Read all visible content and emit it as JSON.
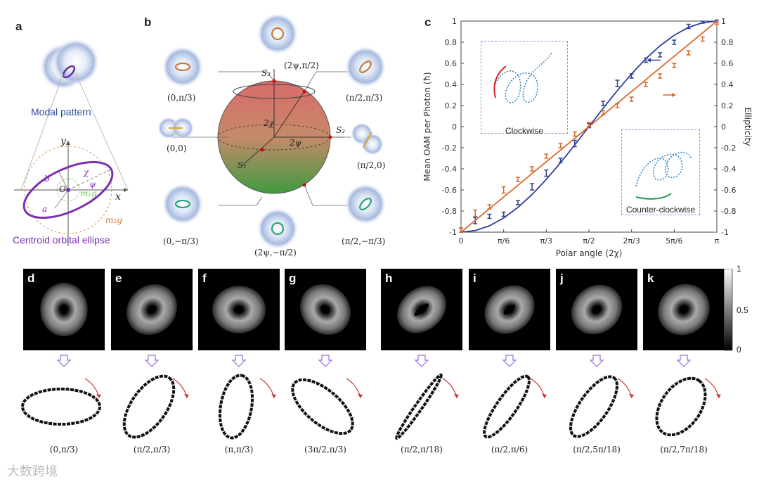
{
  "panels": {
    "a": {
      "label": "a",
      "modal_caption": "Modal pattern",
      "ellipse_caption": "Centroid orbital ellipse",
      "axis_x": "x",
      "axis_y": "y",
      "origin": "O",
      "sym_a": "a",
      "sym_b": "b",
      "sym_chi": "χ",
      "sym_psi": "ψ",
      "sym_m1g": "m₁g",
      "sym_m2g": "m₂g"
    },
    "b": {
      "label": "b",
      "s1": "S₁",
      "s2": "S₂",
      "s3": "S₃",
      "two_chi": "2χ",
      "two_psi": "2ψ",
      "states": [
        "(2ψ,π/2)",
        "(0,π/3)",
        "(π/2,π/3)",
        "(0,0)",
        "(π/2,0)",
        "(0,−π/3)",
        "(π/2,−π/3)",
        "(2ψ,−π/2)"
      ],
      "colors": {
        "north": "#d96a6a",
        "south": "#3f9a3f",
        "orbit_red": "#c8732f",
        "orbit_green": "#1f9f6a"
      }
    },
    "c": {
      "label": "c",
      "inset_cw": "Clockwise",
      "inset_ccw": "Counter-clockwise"
    }
  },
  "chart_data": {
    "type": "line",
    "xlabel": "Polar angle (2χ)",
    "ylabel": "Mean OAM per Photon (ħ)",
    "y2label": "Ellipticity",
    "xlim": [
      0,
      3.14159
    ],
    "ylim": [
      -1,
      1
    ],
    "y2lim": [
      -1,
      1
    ],
    "xticks": [
      0,
      0.5236,
      1.0472,
      1.5708,
      2.0944,
      2.618,
      3.14159
    ],
    "xtick_labels": [
      "0",
      "π/6",
      "π/3",
      "π/2",
      "2π/3",
      "5π/6",
      "π"
    ],
    "yticks": [
      -1,
      -0.8,
      -0.6,
      -0.4,
      -0.2,
      0,
      0.2,
      0.4,
      0.6,
      0.8,
      1
    ],
    "ytick_labels": [
      "-1",
      "-0.8",
      "-0.6",
      "-0.4",
      "-0.2",
      "0",
      "0.2",
      "0.4",
      "0.6",
      "0.8",
      "1"
    ],
    "y2tick_labels": [
      "-1",
      "-0.8",
      "-0.6",
      "-0.4",
      "-0.2",
      "0",
      "0.2",
      "0.4",
      "0.6",
      "0.8",
      "1"
    ],
    "grid": false,
    "series": [
      {
        "color": "#2e3f9a",
        "axis": "left",
        "x": [
          0,
          0.1745,
          0.349,
          0.5236,
          0.6981,
          0.8727,
          1.0472,
          1.2217,
          1.3963,
          1.5708,
          1.7453,
          1.9199,
          2.0944,
          2.2689,
          2.4435,
          2.618,
          2.7925,
          2.967,
          3.1416
        ],
        "y": [
          -0.98,
          -0.89,
          -0.85,
          -0.83,
          -0.72,
          -0.57,
          -0.44,
          -0.32,
          -0.16,
          0.01,
          0.22,
          0.41,
          0.48,
          0.63,
          0.68,
          0.8,
          0.95,
          0.99,
          1.0
        ],
        "err": [
          0.02,
          0.03,
          0.02,
          0.02,
          0.02,
          0.03,
          0.03,
          0.02,
          0.03,
          0.02,
          0.02,
          0.03,
          0.02,
          0.02,
          0.02,
          0.02,
          0.02,
          0.01,
          0.01
        ],
        "fit_y": [
          -1.0,
          -0.985,
          -0.94,
          -0.866,
          -0.766,
          -0.643,
          -0.5,
          -0.342,
          -0.174,
          0.0,
          0.174,
          0.342,
          0.5,
          0.643,
          0.766,
          0.866,
          0.94,
          0.985,
          1.0
        ]
      },
      {
        "color": "#d9692b",
        "axis": "right",
        "x": [
          0,
          0.1745,
          0.349,
          0.5236,
          0.6981,
          0.8727,
          1.0472,
          1.2217,
          1.3963,
          1.5708,
          1.7453,
          1.9199,
          2.0944,
          2.2689,
          2.4435,
          2.618,
          2.7925,
          2.967,
          3.1416
        ],
        "y": [
          -0.98,
          -0.82,
          -0.76,
          -0.6,
          -0.5,
          -0.4,
          -0.28,
          -0.18,
          -0.07,
          0.02,
          0.13,
          0.2,
          0.26,
          0.4,
          0.48,
          0.58,
          0.7,
          0.83,
          0.98
        ],
        "err": [
          0.02,
          0.03,
          0.02,
          0.03,
          0.02,
          0.02,
          0.02,
          0.02,
          0.02,
          0.02,
          0.02,
          0.02,
          0.02,
          0.02,
          0.02,
          0.02,
          0.02,
          0.02,
          0.01
        ],
        "fit_y": [
          -1.0,
          -0.889,
          -0.778,
          -0.667,
          -0.556,
          -0.444,
          -0.333,
          -0.222,
          -0.111,
          0.0,
          0.111,
          0.222,
          0.333,
          0.444,
          0.556,
          0.667,
          0.778,
          0.889,
          1.0
        ]
      }
    ]
  },
  "beams": [
    {
      "label": "d",
      "caption": "(0,π/3)",
      "angle": 90,
      "squash": 0.55
    },
    {
      "label": "e",
      "caption": "(π/2,π/3)",
      "angle": -45,
      "squash": 0.55
    },
    {
      "label": "f",
      "caption": "(π,π/3)",
      "angle": 0,
      "squash": 0.55
    },
    {
      "label": "g",
      "caption": "(3π/2,π/3)",
      "angle": 45,
      "squash": 0.55
    },
    {
      "label": "h",
      "caption": "(π/2,π/18)",
      "angle": -40,
      "squash": 0.15
    },
    {
      "label": "i",
      "caption": "(π/2,π/6)",
      "angle": -40,
      "squash": 0.35
    },
    {
      "label": "j",
      "caption": "(π/2,5π/18)",
      "angle": -40,
      "squash": 0.5
    },
    {
      "label": "k",
      "caption": "(π/2,7π/18)",
      "angle": -40,
      "squash": 0.7
    }
  ],
  "orbits": [
    {
      "rx": 55,
      "ry": 25,
      "rot": 0
    },
    {
      "rx": 50,
      "ry": 25,
      "rot": -55
    },
    {
      "rx": 45,
      "ry": 22,
      "rot": -80
    },
    {
      "rx": 52,
      "ry": 24,
      "rot": 40
    },
    {
      "rx": 55,
      "ry": 5,
      "rot": -55
    },
    {
      "rx": 52,
      "ry": 14,
      "rot": -55
    },
    {
      "rx": 50,
      "ry": 20,
      "rot": -55
    },
    {
      "rx": 45,
      "ry": 28,
      "rot": -55
    }
  ],
  "colorbar": {
    "max": "1",
    "mid": "0.5",
    "min": "0"
  },
  "watermark": "大数跨境"
}
